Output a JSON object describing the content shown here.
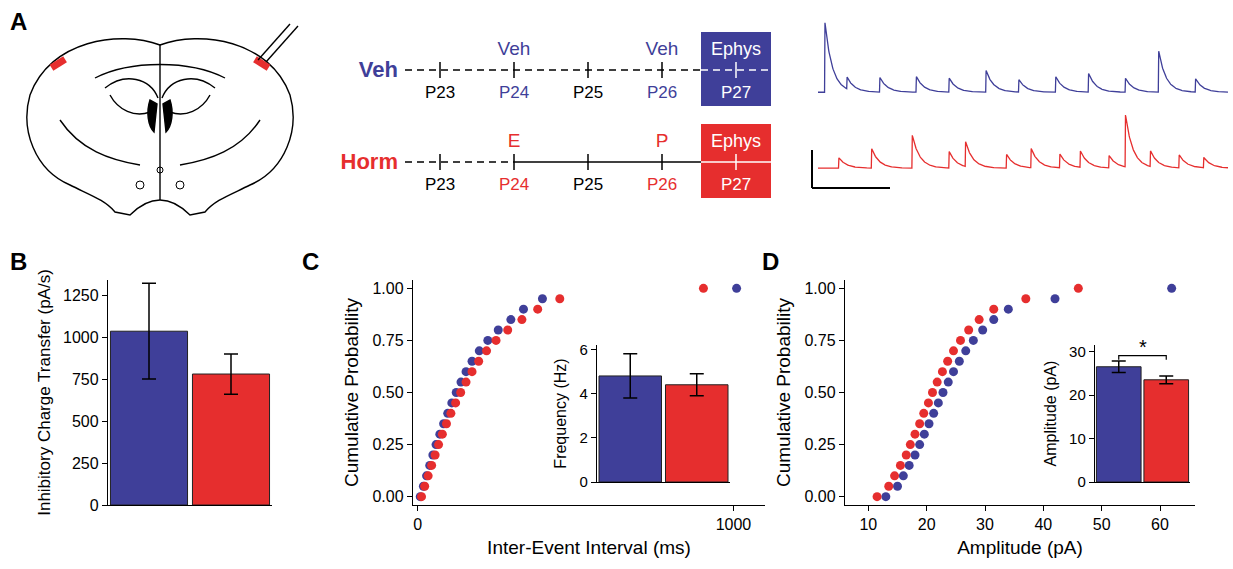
{
  "panel_a": {
    "panel": "A",
    "timeline": {
      "days": [
        "P23",
        "P24",
        "P25",
        "P26",
        "P27"
      ],
      "rows": [
        {
          "name": "Veh",
          "color": "#3f3f99",
          "line_style": "dashed",
          "injections": [
            {
              "day": "P24",
              "label": "Veh"
            },
            {
              "day": "P26",
              "label": "Veh"
            }
          ],
          "recording": {
            "day": "P27",
            "label": "Ephys"
          }
        },
        {
          "name": "Horm",
          "color": "#e62e2e",
          "line_style": "solid",
          "injections": [
            {
              "day": "P24",
              "label": "E"
            },
            {
              "day": "P26",
              "label": "P"
            }
          ],
          "recording": {
            "day": "P27",
            "label": "Ephys"
          }
        }
      ]
    },
    "traces": {
      "type": "line",
      "tick_labels": false,
      "xlim": [
        0,
        100
      ],
      "ylim": [
        -5,
        50
      ],
      "series": [
        {
          "color": "#3f3f99",
          "events": [
            [
              1.7,
              45
            ],
            [
              7,
              8
            ],
            [
              15,
              10
            ],
            [
              24,
              10
            ],
            [
              32,
              9
            ],
            [
              41,
              14
            ],
            [
              49,
              8
            ],
            [
              58,
              10
            ],
            [
              66,
              12
            ],
            [
              75,
              9
            ],
            [
              83,
              28
            ],
            [
              92,
              9
            ]
          ]
        },
        {
          "color": "#e62e2e",
          "events": [
            [
              5,
              8
            ],
            [
              13,
              15
            ],
            [
              23,
              24
            ],
            [
              32,
              12
            ],
            [
              36,
              18
            ],
            [
              46,
              10
            ],
            [
              52,
              14
            ],
            [
              59,
              10
            ],
            [
              64,
              12
            ],
            [
              71,
              9
            ],
            [
              75,
              38
            ],
            [
              81,
              12
            ],
            [
              88,
              10
            ],
            [
              94,
              8
            ]
          ]
        }
      ]
    }
  },
  "chart_data": [
    {
      "panel": "B",
      "type": "bar",
      "y_label": "Inhibitory Charge Transfer (pA/s)",
      "categories": [
        null,
        null
      ],
      "values": [
        1035,
        780
      ],
      "errors": [
        285,
        120
      ],
      "colors": [
        "#3f3f99",
        "#e62e2e"
      ],
      "ylim": [
        0,
        1340
      ],
      "yticks": [
        0,
        250,
        500,
        750,
        1000,
        1250
      ],
      "tick_labels": "y",
      "grid": false
    },
    {
      "panel": "C",
      "type": "scatter",
      "x_label": "Inter-Event Interval (ms)",
      "y_label": "Cumulative Probability",
      "marker": "circle",
      "grid": false,
      "series": [
        {
          "color": "#3f3f99",
          "x": [
            8,
            18,
            28,
            38,
            48,
            58,
            70,
            82,
            95,
            108,
            122,
            137,
            153,
            172,
            195,
            222,
            255,
            295,
            335,
            395,
            1010
          ],
          "values": [
            0,
            0.05,
            0.1,
            0.15,
            0.2,
            0.25,
            0.3,
            0.35,
            0.4,
            0.45,
            0.5,
            0.55,
            0.6,
            0.65,
            0.7,
            0.75,
            0.8,
            0.85,
            0.9,
            0.95,
            1
          ]
        },
        {
          "color": "#e62e2e",
          "x": [
            12,
            22,
            33,
            44,
            55,
            66,
            78,
            91,
            105,
            120,
            136,
            153,
            172,
            193,
            218,
            248,
            285,
            330,
            380,
            450,
            905
          ],
          "values": [
            0,
            0.05,
            0.1,
            0.15,
            0.2,
            0.25,
            0.3,
            0.35,
            0.4,
            0.45,
            0.5,
            0.55,
            0.6,
            0.65,
            0.7,
            0.75,
            0.8,
            0.85,
            0.9,
            0.95,
            1
          ]
        }
      ],
      "xlim": [
        -15,
        1100
      ],
      "xticks": [
        0,
        1000
      ],
      "ylim": [
        -0.04,
        1.04
      ],
      "yticks": [
        {
          "value": 0,
          "label": "0.00"
        },
        {
          "value": 0.25,
          "label": "0.25"
        },
        {
          "value": 0.5,
          "label": "0.50"
        },
        {
          "value": 0.75,
          "label": "0.75"
        },
        {
          "value": 1,
          "label": "1.00"
        }
      ],
      "inset": {
        "type": "bar",
        "y_label": "Frequency (Hz)",
        "categories": [
          null,
          null
        ],
        "values": [
          4.8,
          4.4
        ],
        "errors": [
          1.0,
          0.5
        ],
        "colors": [
          "#3f3f99",
          "#e62e2e"
        ],
        "ylim": [
          0,
          6.2
        ],
        "yticks": [
          0,
          2,
          4,
          6
        ],
        "tick_labels": "y",
        "grid": false
      }
    },
    {
      "panel": "D",
      "type": "scatter",
      "x_label": "Amplitude (pA)",
      "y_label": "Cumulative Probability",
      "marker": "circle",
      "grid": false,
      "series": [
        {
          "color": "#3f3f99",
          "x": [
            13,
            15,
            16,
            17,
            18,
            18.8,
            19.6,
            20.4,
            21.2,
            22,
            22.8,
            23.7,
            24.6,
            25.6,
            26.7,
            28,
            29.6,
            31.5,
            34,
            42,
            62
          ],
          "values": [
            0,
            0.05,
            0.1,
            0.15,
            0.2,
            0.25,
            0.3,
            0.35,
            0.4,
            0.45,
            0.5,
            0.55,
            0.6,
            0.65,
            0.7,
            0.75,
            0.8,
            0.85,
            0.9,
            0.95,
            1
          ]
        },
        {
          "color": "#e62e2e",
          "x": [
            11.5,
            13.5,
            14.5,
            15.5,
            16.5,
            17.2,
            18,
            18.8,
            19.5,
            20.3,
            21,
            21.8,
            22.7,
            23.6,
            24.6,
            25.8,
            27.2,
            29,
            31.5,
            37,
            46
          ],
          "values": [
            0,
            0.05,
            0.1,
            0.15,
            0.2,
            0.25,
            0.3,
            0.35,
            0.4,
            0.45,
            0.5,
            0.55,
            0.6,
            0.65,
            0.7,
            0.75,
            0.8,
            0.85,
            0.9,
            0.95,
            1
          ]
        }
      ],
      "xlim": [
        6,
        66
      ],
      "xticks": [
        10,
        20,
        30,
        40,
        50,
        60
      ],
      "ylim": [
        -0.04,
        1.04
      ],
      "yticks": [
        {
          "value": 0,
          "label": "0.00"
        },
        {
          "value": 0.25,
          "label": "0.25"
        },
        {
          "value": 0.5,
          "label": "0.50"
        },
        {
          "value": 0.75,
          "label": "0.75"
        },
        {
          "value": 1,
          "label": "1.00"
        }
      ],
      "inset": {
        "type": "bar",
        "y_label": "Amplitude (pA)",
        "categories": [
          null,
          null
        ],
        "values": [
          26.5,
          23.5
        ],
        "errors": [
          1.3,
          0.9
        ],
        "colors": [
          "#3f3f99",
          "#e62e2e"
        ],
        "ylim": [
          0,
          31.5
        ],
        "yticks": [
          0,
          10,
          20,
          30
        ],
        "tick_labels": "y",
        "grid": false,
        "annotations": [
          "*"
        ]
      }
    }
  ]
}
